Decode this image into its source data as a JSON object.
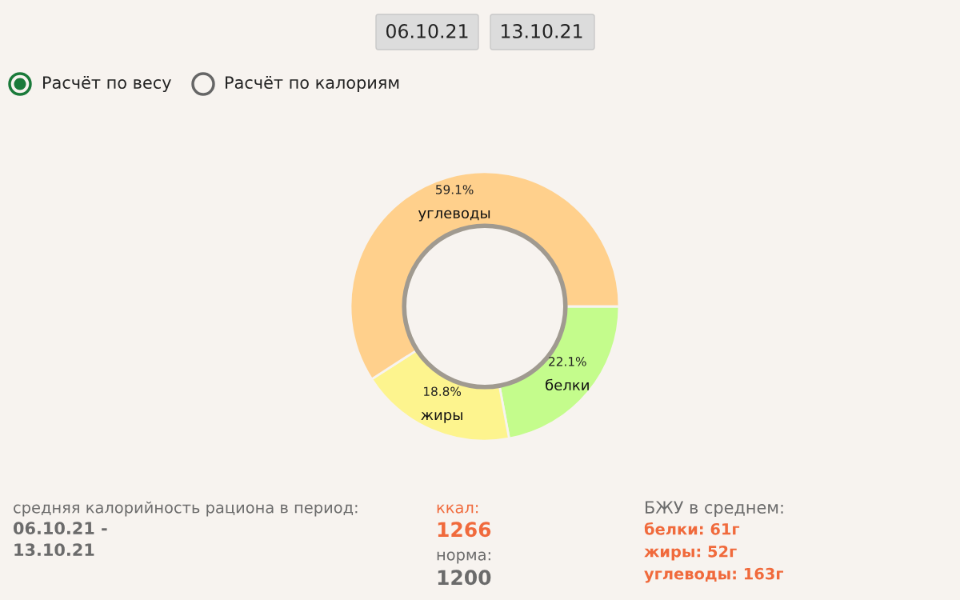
{
  "chart_data": {
    "type": "donut",
    "categories": [
      "белки",
      "жиры",
      "углеводы"
    ],
    "values": [
      22.1,
      18.8,
      59.1
    ],
    "colors": [
      "#c4fc8c",
      "#fdf48e",
      "#ffd08c"
    ],
    "value_labels": [
      "22.1%",
      "18.8%",
      "59.1%"
    ],
    "annotations": [
      "06.10.21",
      "13.10.21",
      "Расчёт по весу",
      "Расчёт по калориям",
      "средняя калорийность рациона в период:",
      "06.10.21 -",
      "13.10.21",
      "ккал:",
      "1266",
      "норма:",
      "1200",
      "БЖУ в среднем:",
      "белки: 61г",
      "жиры: 52г",
      "углеводы: 163г"
    ]
  }
}
